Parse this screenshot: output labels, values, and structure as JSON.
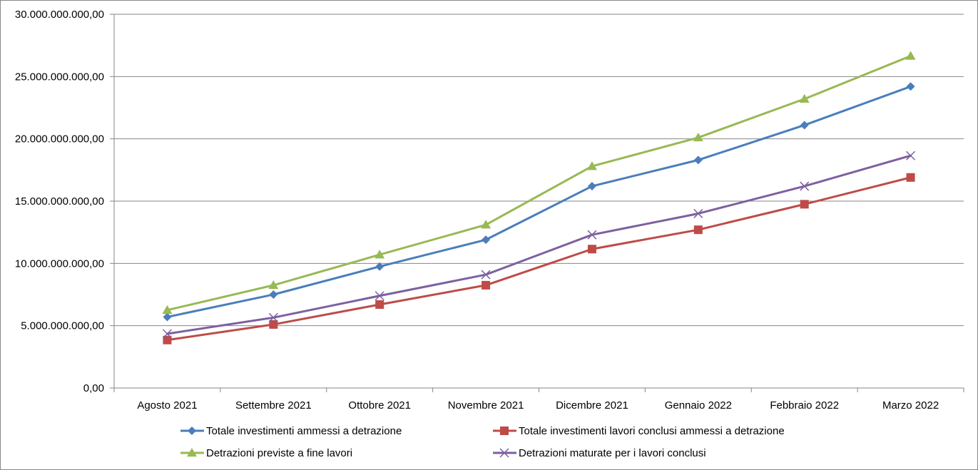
{
  "chart_data": {
    "type": "line",
    "categories": [
      "Agosto 2021",
      "Settembre 2021",
      "Ottobre 2021",
      "Novembre 2021",
      "Dicembre 2021",
      "Gennaio 2022",
      "Febbraio 2022",
      "Marzo 2022"
    ],
    "series": [
      {
        "name": "Totale investimenti ammessi a detrazione",
        "color": "#4a7ebb",
        "marker": "diamond",
        "values": [
          5700000000,
          7500000000,
          9750000000,
          11900000000,
          16200000000,
          18300000000,
          21100000000,
          24200000000
        ]
      },
      {
        "name": "Totale investimenti lavori conclusi ammessi a detrazione",
        "color": "#be4b48",
        "marker": "square",
        "values": [
          3850000000,
          5100000000,
          6700000000,
          8250000000,
          11150000000,
          12700000000,
          14750000000,
          16900000000
        ]
      },
      {
        "name": "Detrazioni previste a fine lavori",
        "color": "#98b954",
        "marker": "triangle",
        "values": [
          6250000000,
          8250000000,
          10700000000,
          13100000000,
          17800000000,
          20100000000,
          23200000000,
          26650000000
        ]
      },
      {
        "name": "Detrazioni maturate per i lavori conclusi",
        "color": "#7d60a0",
        "marker": "x",
        "values": [
          4350000000,
          5650000000,
          7400000000,
          9100000000,
          12300000000,
          14000000000,
          16200000000,
          18650000000
        ]
      }
    ],
    "ylim": [
      0,
      30000000000
    ],
    "yticks": [
      0,
      5000000000,
      10000000000,
      15000000000,
      20000000000,
      25000000000,
      30000000000
    ],
    "ytick_labels": [
      "0,00",
      "5.000.000.000,00",
      "10.000.000.000,00",
      "15.000.000.000,00",
      "20.000.000.000,00",
      "25.000.000.000,00",
      "30.000.000.000,00"
    ],
    "grid": true,
    "legend_position": "bottom"
  }
}
